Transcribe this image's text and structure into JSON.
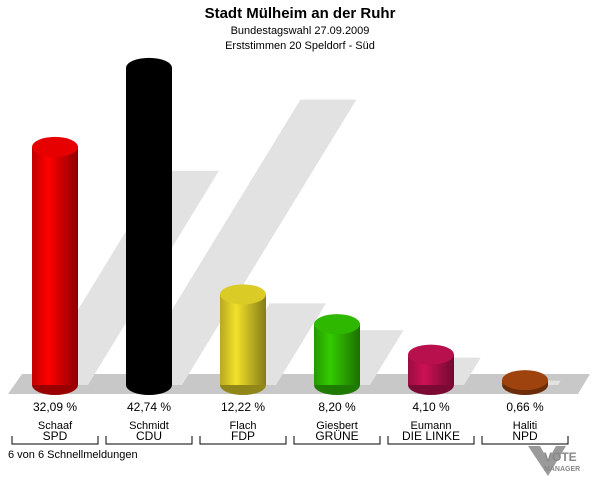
{
  "chart_data": {
    "type": "bar",
    "title": "Stadt Mülheim an der Ruhr",
    "subtitle": [
      "Bundestagswahl 27.09.2009",
      "Erststimmen 20 Speldorf - Süd"
    ],
    "categories": [
      "SPD",
      "CDU",
      "FDP",
      "GRÜNE",
      "DIE LINKE",
      "NPD"
    ],
    "candidates": [
      "Schaaf",
      "Schmidt",
      "Flach",
      "Giesbert",
      "Eumann",
      "Haliti"
    ],
    "values": [
      32.09,
      42.74,
      12.22,
      8.2,
      4.1,
      0.66
    ],
    "value_labels": [
      "32,09 %",
      "42,74 %",
      "12,22 %",
      "8,20 %",
      "4,10 %",
      "0,66 %"
    ],
    "colors": [
      "#ff0000",
      "#000000",
      "#f2e12a",
      "#33cc00",
      "#cc1155",
      "#b04a10"
    ],
    "footnote": "6 von 6 Schnellmeldungen",
    "logo": [
      "VOTE",
      "MANAGER"
    ]
  }
}
